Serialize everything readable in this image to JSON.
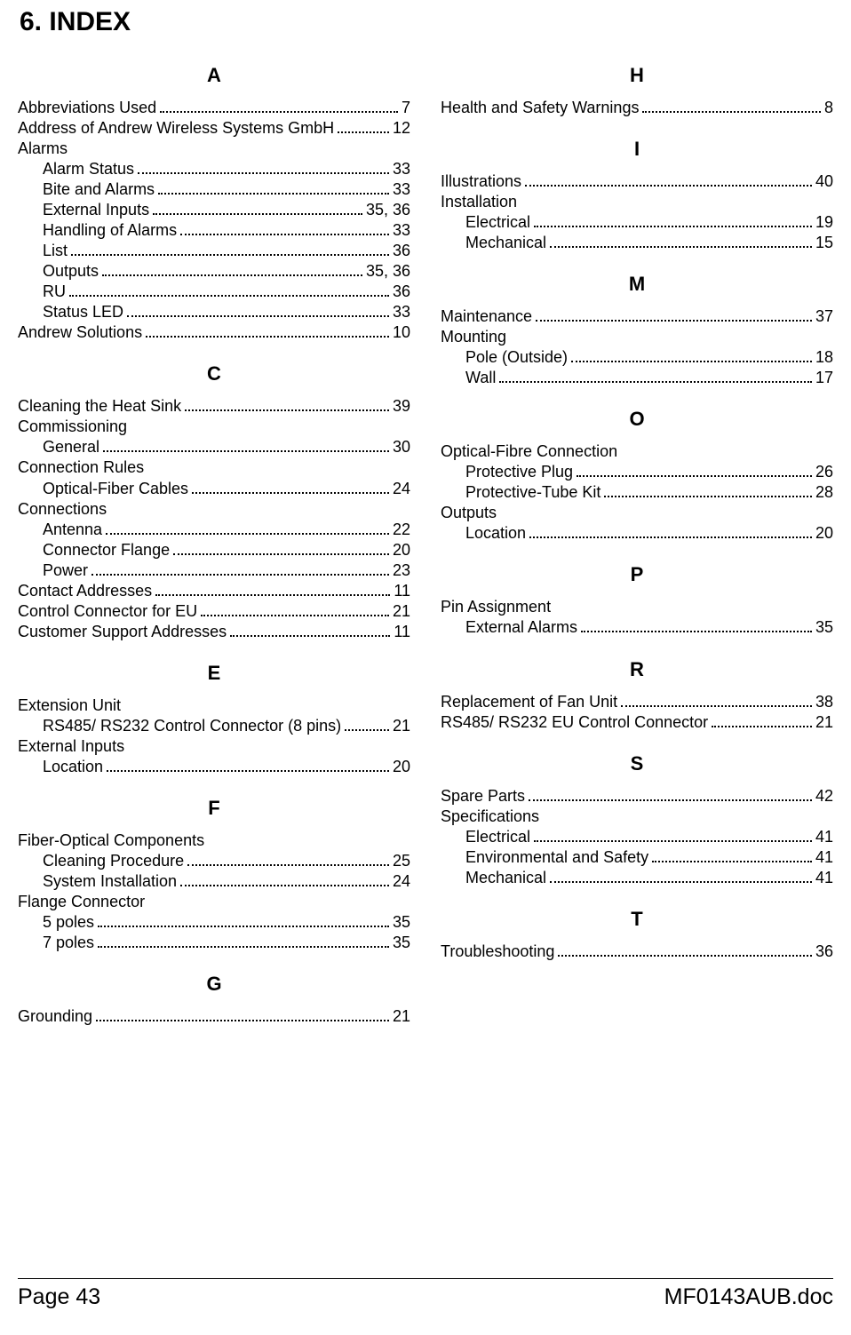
{
  "section_heading": "6.  INDEX",
  "footer": {
    "left": "Page 43",
    "right": "MF0143AUB.doc"
  },
  "left": [
    {
      "type": "letter",
      "text": "A",
      "first": true
    },
    {
      "type": "entry",
      "label": "Abbreviations Used",
      "page": "7"
    },
    {
      "type": "entry",
      "label": "Address of Andrew Wireless Systems GmbH",
      "page": "12"
    },
    {
      "type": "heading",
      "label": "Alarms"
    },
    {
      "type": "entry",
      "sub": true,
      "label": "Alarm Status",
      "page": "33"
    },
    {
      "type": "entry",
      "sub": true,
      "label": "Bite and Alarms",
      "page": "33"
    },
    {
      "type": "entry",
      "sub": true,
      "label": "External Inputs",
      "page": "35, 36"
    },
    {
      "type": "entry",
      "sub": true,
      "label": "Handling of Alarms",
      "page": "33"
    },
    {
      "type": "entry",
      "sub": true,
      "label": "List",
      "page": "36"
    },
    {
      "type": "entry",
      "sub": true,
      "label": "Outputs",
      "page": "35, 36"
    },
    {
      "type": "entry",
      "sub": true,
      "label": "RU",
      "page": "36"
    },
    {
      "type": "entry",
      "sub": true,
      "label": "Status LED",
      "page": "33"
    },
    {
      "type": "entry",
      "label": "Andrew Solutions",
      "page": "10"
    },
    {
      "type": "letter",
      "text": "C"
    },
    {
      "type": "entry",
      "label": "Cleaning the Heat Sink",
      "page": "39"
    },
    {
      "type": "heading",
      "label": "Commissioning"
    },
    {
      "type": "entry",
      "sub": true,
      "label": "General",
      "page": "30"
    },
    {
      "type": "heading",
      "label": "Connection Rules"
    },
    {
      "type": "entry",
      "sub": true,
      "label": "Optical-Fiber Cables",
      "page": "24"
    },
    {
      "type": "heading",
      "label": "Connections"
    },
    {
      "type": "entry",
      "sub": true,
      "label": "Antenna",
      "page": "22"
    },
    {
      "type": "entry",
      "sub": true,
      "label": "Connector Flange",
      "page": "20"
    },
    {
      "type": "entry",
      "sub": true,
      "label": "Power",
      "page": "23"
    },
    {
      "type": "entry",
      "label": "Contact Addresses",
      "page": "11"
    },
    {
      "type": "entry",
      "label": "Control Connector for EU",
      "page": "21"
    },
    {
      "type": "entry",
      "label": "Customer Support Addresses",
      "page": "11"
    },
    {
      "type": "letter",
      "text": "E"
    },
    {
      "type": "heading",
      "label": "Extension Unit"
    },
    {
      "type": "entry",
      "sub": true,
      "label": "RS485/ RS232 Control Connector (8 pins)",
      "page": "21"
    },
    {
      "type": "heading",
      "label": "External Inputs"
    },
    {
      "type": "entry",
      "sub": true,
      "label": "Location",
      "page": "20"
    },
    {
      "type": "letter",
      "text": "F"
    },
    {
      "type": "heading",
      "label": "Fiber-Optical Components"
    },
    {
      "type": "entry",
      "sub": true,
      "label": "Cleaning Procedure",
      "page": "25"
    },
    {
      "type": "entry",
      "sub": true,
      "label": "System Installation",
      "page": "24"
    },
    {
      "type": "heading",
      "label": "Flange Connector"
    },
    {
      "type": "entry",
      "sub": true,
      "label": "5 poles",
      "page": "35"
    },
    {
      "type": "entry",
      "sub": true,
      "label": "7 poles",
      "page": "35"
    },
    {
      "type": "letter",
      "text": "G"
    },
    {
      "type": "entry",
      "label": "Grounding",
      "page": "21"
    }
  ],
  "right": [
    {
      "type": "letter",
      "text": "H",
      "first": true
    },
    {
      "type": "entry",
      "label": "Health and Safety Warnings",
      "page": "8"
    },
    {
      "type": "letter",
      "text": "I"
    },
    {
      "type": "entry",
      "label": "Illustrations",
      "page": "40"
    },
    {
      "type": "heading",
      "label": "Installation"
    },
    {
      "type": "entry",
      "sub": true,
      "label": "Electrical",
      "page": "19"
    },
    {
      "type": "entry",
      "sub": true,
      "label": "Mechanical",
      "page": "15"
    },
    {
      "type": "letter",
      "text": "M"
    },
    {
      "type": "entry",
      "label": "Maintenance",
      "page": "37"
    },
    {
      "type": "heading",
      "label": "Mounting"
    },
    {
      "type": "entry",
      "sub": true,
      "label": "Pole (Outside)",
      "page": "18"
    },
    {
      "type": "entry",
      "sub": true,
      "label": "Wall",
      "page": "17"
    },
    {
      "type": "letter",
      "text": "O"
    },
    {
      "type": "heading",
      "label": "Optical-Fibre Connection"
    },
    {
      "type": "entry",
      "sub": true,
      "label": "Protective Plug",
      "page": "26"
    },
    {
      "type": "entry",
      "sub": true,
      "label": "Protective-Tube Kit",
      "page": "28"
    },
    {
      "type": "heading",
      "label": "Outputs"
    },
    {
      "type": "entry",
      "sub": true,
      "label": "Location",
      "page": "20"
    },
    {
      "type": "letter",
      "text": "P"
    },
    {
      "type": "heading",
      "label": "Pin Assignment"
    },
    {
      "type": "entry",
      "sub": true,
      "label": "External Alarms",
      "page": "35"
    },
    {
      "type": "letter",
      "text": "R"
    },
    {
      "type": "entry",
      "label": "Replacement of Fan Unit",
      "page": "38"
    },
    {
      "type": "entry",
      "label": "RS485/ RS232 EU Control Connector",
      "page": "21"
    },
    {
      "type": "letter",
      "text": "S"
    },
    {
      "type": "entry",
      "label": "Spare Parts",
      "page": "42"
    },
    {
      "type": "heading",
      "label": "Specifications"
    },
    {
      "type": "entry",
      "sub": true,
      "label": "Electrical",
      "page": "41"
    },
    {
      "type": "entry",
      "sub": true,
      "label": "Environmental and Safety",
      "page": "41"
    },
    {
      "type": "entry",
      "sub": true,
      "label": "Mechanical",
      "page": "41"
    },
    {
      "type": "letter",
      "text": "T"
    },
    {
      "type": "entry",
      "label": "Troubleshooting",
      "page": "36"
    }
  ]
}
